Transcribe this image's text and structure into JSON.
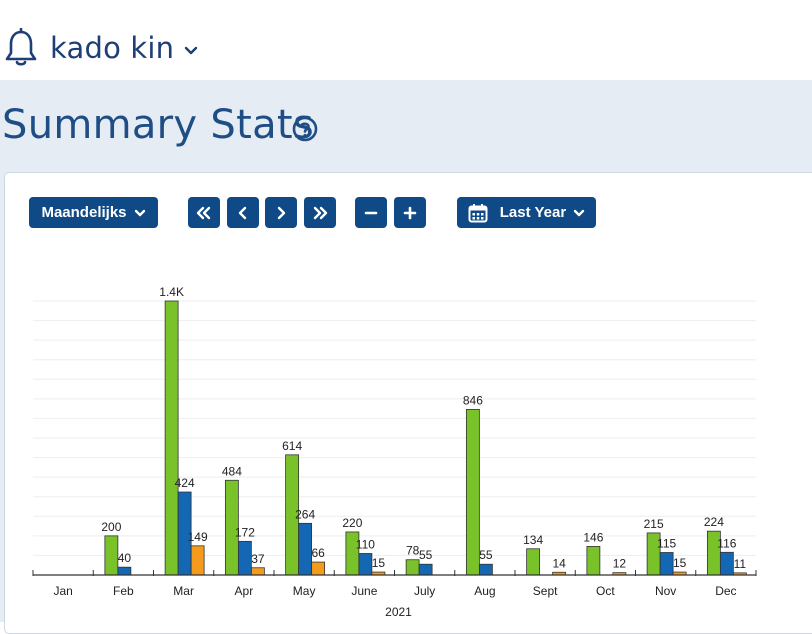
{
  "user": {
    "name": "kado kin",
    "icon": "bell-icon"
  },
  "page": {
    "title": "Summary Stats",
    "help_icon": "question-circle-icon"
  },
  "controls": {
    "interval_label": "Maandelijks",
    "range_label": "Last Year",
    "icons": [
      "double-chevron-left-icon",
      "chevron-left-icon",
      "chevron-right-icon",
      "double-chevron-right-icon",
      "minus-icon",
      "plus-icon",
      "calendar-icon"
    ]
  },
  "colors": {
    "green": "#7ac22a",
    "blue": "#1467b3",
    "orange": "#f49a1c",
    "brand": "#0f4a86"
  },
  "chart_data": {
    "type": "bar",
    "xlabel": "2021",
    "ylabel": "",
    "ylim": [
      0,
      1400
    ],
    "grid": true,
    "categories": [
      "Jan",
      "Feb",
      "Mar",
      "Apr",
      "May",
      "June",
      "July",
      "Aug",
      "Sept",
      "Oct",
      "Nov",
      "Dec"
    ],
    "series": [
      {
        "color": "#7ac22a",
        "values": [
          0,
          200,
          1400,
          484,
          614,
          220,
          78,
          846,
          134,
          146,
          215,
          224
        ],
        "labels": [
          "",
          "200",
          "1.4K",
          "484",
          "614",
          "220",
          "78",
          "846",
          "134",
          "146",
          "215",
          "224"
        ]
      },
      {
        "color": "#1467b3",
        "values": [
          0,
          40,
          424,
          172,
          264,
          110,
          55,
          55,
          0,
          0,
          115,
          116
        ],
        "labels": [
          "",
          "40",
          "424",
          "172",
          "264",
          "110",
          "55",
          "55",
          "",
          "",
          "115",
          "116"
        ]
      },
      {
        "color": "#f49a1c",
        "values": [
          0,
          0,
          149,
          37,
          66,
          15,
          0,
          0,
          14,
          12,
          15,
          11
        ],
        "labels": [
          "",
          "",
          "149",
          "37",
          "66",
          "15",
          "",
          "",
          "14",
          "12",
          "15",
          "11"
        ]
      }
    ]
  }
}
